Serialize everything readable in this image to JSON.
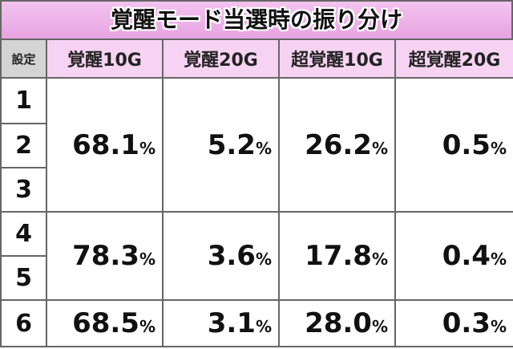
{
  "title": "覚醒モード当選時の振り分け",
  "table": {
    "header": [
      "設定",
      "覚醒10G",
      "覚醒20G",
      "超覚醒10G",
      "超覚醒20G"
    ],
    "groups": [
      {
        "settings": [
          "1",
          "2",
          "3"
        ],
        "values": [
          "68.1%",
          "5.2%",
          "26.2%",
          "0.5%"
        ]
      },
      {
        "settings": [
          "4",
          "5"
        ],
        "values": [
          "78.3%",
          "3.6%",
          "17.8%",
          "0.4%"
        ]
      },
      {
        "settings": [
          "6"
        ],
        "values": [
          "68.5%",
          "3.1%",
          "28.0%",
          "0.3%"
        ]
      }
    ]
  }
}
